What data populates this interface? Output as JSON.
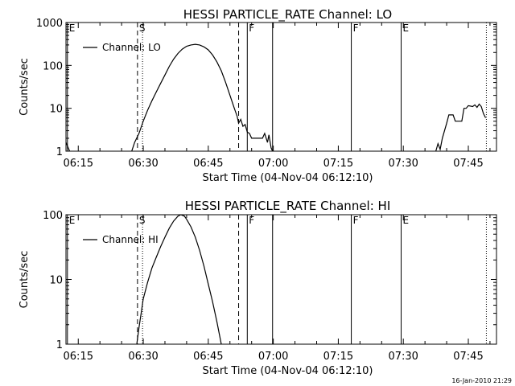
{
  "footer": {
    "date": "16-Jan-2010 21:29"
  },
  "chart_data": [
    {
      "type": "line",
      "title": "HESSI PARTICLE_RATE Channel: LO",
      "xlabel": "Start Time (04-Nov-04 06:12:10)",
      "ylabel": "Counts/sec",
      "yscale": "log",
      "xlim": [
        "06:12:10",
        "07:51:30"
      ],
      "ylim": [
        1,
        1000
      ],
      "x_ticks": [
        "06:15",
        "06:30",
        "06:45",
        "07:00",
        "07:15",
        "07:30",
        "07:45"
      ],
      "y_ticks": [
        "1",
        "10",
        "100",
        "1000"
      ],
      "legend": {
        "entries": [
          "Channel: LO"
        ],
        "position": "top-left"
      },
      "grid": false,
      "series": [
        {
          "name": "Channel: LO",
          "segments": [
            [
              [
                "06:12:10",
                1.6
              ],
              [
                "06:13:00",
                1.0
              ]
            ],
            [
              [
                "06:27:20",
                1.0
              ],
              [
                "06:28:00",
                1.6
              ],
              [
                "06:29:00",
                2.6
              ],
              [
                "06:30:00",
                5.0
              ],
              [
                "06:31:00",
                9.0
              ],
              [
                "06:32:00",
                15
              ],
              [
                "06:33:00",
                24
              ],
              [
                "06:34:00",
                38
              ],
              [
                "06:35:00",
                60
              ],
              [
                "06:36:00",
                95
              ],
              [
                "06:37:00",
                140
              ],
              [
                "06:38:00",
                190
              ],
              [
                "06:39:00",
                240
              ],
              [
                "06:40:00",
                280
              ],
              [
                "06:41:00",
                300
              ],
              [
                "06:42:00",
                310
              ],
              [
                "06:43:00",
                300
              ],
              [
                "06:44:00",
                270
              ],
              [
                "06:45:00",
                230
              ],
              [
                "06:46:00",
                175
              ],
              [
                "06:47:00",
                120
              ],
              [
                "06:48:00",
                75
              ],
              [
                "06:49:00",
                40
              ],
              [
                "06:50:00",
                20
              ],
              [
                "06:51:00",
                10
              ],
              [
                "06:51:40",
                6.5
              ],
              [
                "06:52:00",
                4.5
              ],
              [
                "06:52:30",
                5.5
              ],
              [
                "06:53:00",
                3.8
              ],
              [
                "06:53:30",
                4.2
              ],
              [
                "06:54:00",
                2.8
              ],
              [
                "06:54:30",
                2.6
              ],
              [
                "06:55:00",
                2.0
              ],
              [
                "06:56:00",
                2.0
              ],
              [
                "06:57:30",
                2.0
              ],
              [
                "06:58:00",
                2.6
              ],
              [
                "06:58:40",
                1.6
              ],
              [
                "06:59:00",
                2.4
              ],
              [
                "06:59:30",
                1.2
              ],
              [
                "06:59:50",
                1.0
              ]
            ],
            [
              [
                "07:37:30",
                1.0
              ],
              [
                "07:38:00",
                1.5
              ],
              [
                "07:38:30",
                1.1
              ],
              [
                "07:39:00",
                2.0
              ],
              [
                "07:40:00",
                4.5
              ],
              [
                "07:40:30",
                7.0
              ],
              [
                "07:41:30",
                7.0
              ],
              [
                "07:42:00",
                5.0
              ],
              [
                "07:43:00",
                5.0
              ],
              [
                "07:43:30",
                5.0
              ],
              [
                "07:44:00",
                10.0
              ],
              [
                "07:44:30",
                10.0
              ],
              [
                "07:45:00",
                11.5
              ],
              [
                "07:46:00",
                11.0
              ],
              [
                "07:46:30",
                12.0
              ],
              [
                "07:47:00",
                10.5
              ],
              [
                "07:47:30",
                12.5
              ],
              [
                "07:48:00",
                11.0
              ],
              [
                "07:48:30",
                7.5
              ],
              [
                "07:49:00",
                6.0
              ]
            ]
          ]
        }
      ],
      "annotations": [
        {
          "time": "06:12:30",
          "label": "E",
          "style": "solid"
        },
        {
          "time": "06:28:40",
          "label": "S",
          "style": "dashed"
        },
        {
          "time": "06:29:50",
          "label": "",
          "style": "dotted"
        },
        {
          "time": "06:52:00",
          "label": "",
          "style": "dashed"
        },
        {
          "time": "06:54:00",
          "label": "F",
          "style": "solid"
        },
        {
          "time": "06:59:50",
          "label": "",
          "style": "solid"
        },
        {
          "time": "07:18:00",
          "label": "F",
          "style": "solid"
        },
        {
          "time": "07:29:30",
          "label": "E",
          "style": "solid"
        },
        {
          "time": "07:49:10",
          "label": "",
          "style": "dotted"
        }
      ]
    },
    {
      "type": "line",
      "title": "HESSI PARTICLE_RATE Channel: HI",
      "xlabel": "Start Time (04-Nov-04 06:12:10)",
      "ylabel": "Counts/sec",
      "yscale": "log",
      "xlim": [
        "06:12:10",
        "07:51:30"
      ],
      "ylim": [
        1,
        100
      ],
      "x_ticks": [
        "06:15",
        "06:30",
        "06:45",
        "07:00",
        "07:15",
        "07:30",
        "07:45"
      ],
      "y_ticks": [
        "1",
        "10",
        "100"
      ],
      "legend": {
        "entries": [
          "Channel: HI"
        ],
        "position": "top-left"
      },
      "grid": false,
      "series": [
        {
          "name": "Channel: HI",
          "segments": [
            [
              [
                "06:28:30",
                1.0
              ],
              [
                "06:29:00",
                1.8
              ],
              [
                "06:29:30",
                3.0
              ],
              [
                "06:30:00",
                5.0
              ],
              [
                "06:31:00",
                9.0
              ],
              [
                "06:32:00",
                15
              ],
              [
                "06:33:00",
                22
              ],
              [
                "06:34:00",
                32
              ],
              [
                "06:35:00",
                45
              ],
              [
                "06:36:00",
                62
              ],
              [
                "06:37:00",
                80
              ],
              [
                "06:38:00",
                95
              ],
              [
                "06:38:40",
                100
              ],
              [
                "06:39:30",
                95
              ],
              [
                "06:40:00",
                85
              ],
              [
                "06:41:00",
                65
              ],
              [
                "06:42:00",
                45
              ],
              [
                "06:43:00",
                28
              ],
              [
                "06:44:00",
                16
              ],
              [
                "06:45:00",
                8.5
              ],
              [
                "06:46:00",
                4.5
              ],
              [
                "06:47:00",
                2.2
              ],
              [
                "06:47:40",
                1.3
              ],
              [
                "06:48:00",
                1.0
              ]
            ]
          ]
        }
      ],
      "annotations": [
        {
          "time": "06:12:30",
          "label": "E",
          "style": "solid"
        },
        {
          "time": "06:28:40",
          "label": "S",
          "style": "dashed"
        },
        {
          "time": "06:29:50",
          "label": "",
          "style": "dotted"
        },
        {
          "time": "06:52:00",
          "label": "",
          "style": "dashed"
        },
        {
          "time": "06:54:00",
          "label": "F",
          "style": "solid"
        },
        {
          "time": "06:59:50",
          "label": "",
          "style": "solid"
        },
        {
          "time": "07:18:00",
          "label": "F",
          "style": "solid"
        },
        {
          "time": "07:29:30",
          "label": "E",
          "style": "solid"
        },
        {
          "time": "07:49:10",
          "label": "",
          "style": "dotted"
        }
      ]
    }
  ]
}
